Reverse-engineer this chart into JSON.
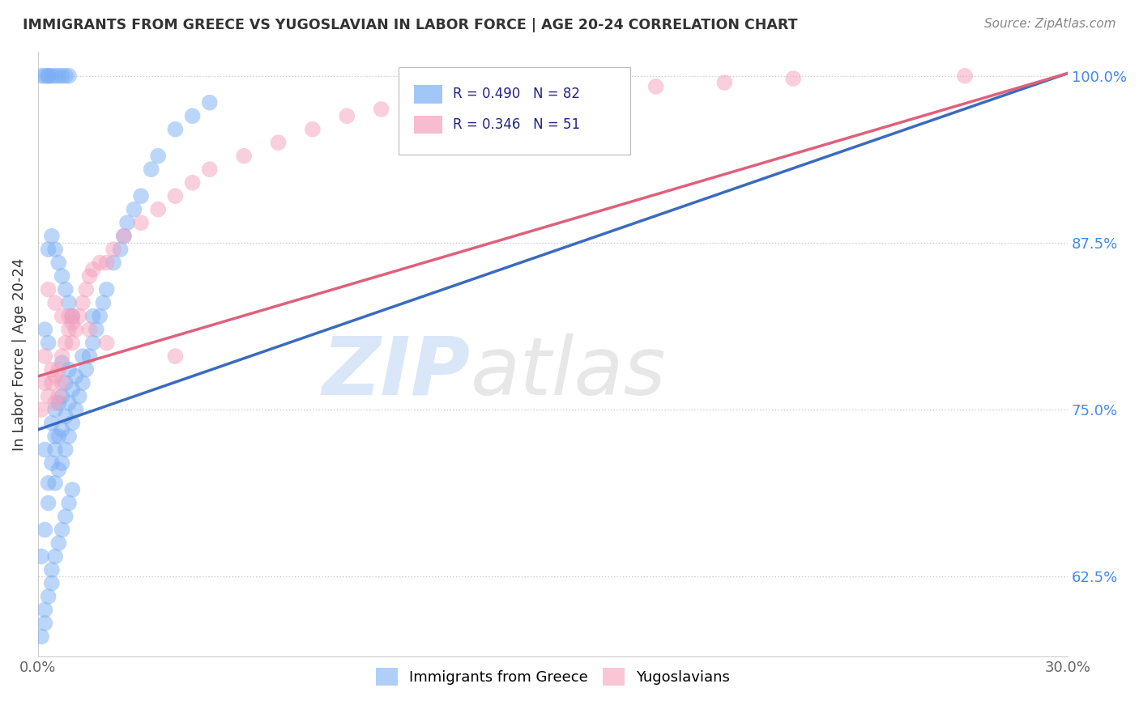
{
  "title": "IMMIGRANTS FROM GREECE VS YUGOSLAVIAN IN LABOR FORCE | AGE 20-24 CORRELATION CHART",
  "source": "Source: ZipAtlas.com",
  "ylabel": "In Labor Force | Age 20-24",
  "legend_labels": [
    "Immigrants from Greece",
    "Yugoslavians"
  ],
  "greece_color": "#7baff5",
  "yugoslavia_color": "#f5a0bc",
  "trend_greece_color": "#3a6bbf",
  "trend_yugoslavia_color": "#e0607a",
  "R_greece": 0.49,
  "N_greece": 82,
  "R_yugoslavia": 0.346,
  "N_yugoslavia": 51,
  "xmin": 0.0,
  "xmax": 0.3,
  "ymin": 0.565,
  "ymax": 1.018,
  "yticks": [
    0.625,
    0.75,
    0.875,
    1.0
  ],
  "ytick_labels": [
    "62.5%",
    "75.0%",
    "87.5%",
    "100.0%"
  ],
  "xticks": [
    0.0,
    0.3
  ],
  "xtick_labels": [
    "0.0%",
    "30.0%"
  ],
  "background_color": "#ffffff",
  "grid_color": "#cccccc",
  "greece_trend_x0": 0.0,
  "greece_trend_y0": 0.735,
  "greece_trend_x1": 0.3,
  "greece_trend_y1": 1.002,
  "yugo_trend_x0": 0.0,
  "yugo_trend_y0": 0.775,
  "yugo_trend_x1": 0.3,
  "yugo_trend_y1": 1.002,
  "greece_x": [
    0.001,
    0.002,
    0.002,
    0.003,
    0.003,
    0.004,
    0.004,
    0.005,
    0.005,
    0.005,
    0.005,
    0.006,
    0.006,
    0.006,
    0.007,
    0.007,
    0.007,
    0.007,
    0.008,
    0.008,
    0.008,
    0.009,
    0.009,
    0.009,
    0.01,
    0.01,
    0.011,
    0.011,
    0.012,
    0.013,
    0.013,
    0.014,
    0.015,
    0.016,
    0.016,
    0.017,
    0.018,
    0.019,
    0.02,
    0.022,
    0.024,
    0.025,
    0.026,
    0.028,
    0.03,
    0.033,
    0.035,
    0.04,
    0.045,
    0.05,
    0.001,
    0.002,
    0.003,
    0.003,
    0.004,
    0.005,
    0.006,
    0.007,
    0.008,
    0.009,
    0.001,
    0.002,
    0.002,
    0.003,
    0.004,
    0.004,
    0.005,
    0.006,
    0.007,
    0.008,
    0.009,
    0.01,
    0.003,
    0.004,
    0.005,
    0.006,
    0.007,
    0.008,
    0.009,
    0.01,
    0.002,
    0.003
  ],
  "greece_y": [
    0.64,
    0.66,
    0.72,
    0.695,
    0.68,
    0.71,
    0.74,
    0.695,
    0.72,
    0.75,
    0.73,
    0.705,
    0.73,
    0.755,
    0.71,
    0.735,
    0.76,
    0.785,
    0.72,
    0.745,
    0.77,
    0.73,
    0.755,
    0.78,
    0.74,
    0.765,
    0.75,
    0.775,
    0.76,
    0.77,
    0.79,
    0.78,
    0.79,
    0.8,
    0.82,
    0.81,
    0.82,
    0.83,
    0.84,
    0.86,
    0.87,
    0.88,
    0.89,
    0.9,
    0.91,
    0.93,
    0.94,
    0.96,
    0.97,
    0.98,
    1.0,
    1.0,
    1.0,
    1.0,
    1.0,
    1.0,
    1.0,
    1.0,
    1.0,
    1.0,
    0.58,
    0.59,
    0.6,
    0.61,
    0.62,
    0.63,
    0.64,
    0.65,
    0.66,
    0.67,
    0.68,
    0.69,
    0.87,
    0.88,
    0.87,
    0.86,
    0.85,
    0.84,
    0.83,
    0.82,
    0.81,
    0.8
  ],
  "yugoslavia_x": [
    0.001,
    0.002,
    0.002,
    0.003,
    0.004,
    0.004,
    0.005,
    0.005,
    0.006,
    0.006,
    0.007,
    0.007,
    0.008,
    0.009,
    0.009,
    0.01,
    0.01,
    0.011,
    0.012,
    0.013,
    0.014,
    0.015,
    0.016,
    0.018,
    0.02,
    0.022,
    0.025,
    0.03,
    0.035,
    0.04,
    0.045,
    0.05,
    0.06,
    0.07,
    0.08,
    0.09,
    0.1,
    0.12,
    0.14,
    0.16,
    0.18,
    0.2,
    0.22,
    0.003,
    0.005,
    0.007,
    0.01,
    0.015,
    0.02,
    0.04,
    0.27
  ],
  "yugoslavia_y": [
    0.75,
    0.77,
    0.79,
    0.76,
    0.77,
    0.78,
    0.755,
    0.775,
    0.76,
    0.78,
    0.77,
    0.79,
    0.8,
    0.81,
    0.82,
    0.8,
    0.82,
    0.81,
    0.82,
    0.83,
    0.84,
    0.85,
    0.855,
    0.86,
    0.86,
    0.87,
    0.88,
    0.89,
    0.9,
    0.91,
    0.92,
    0.93,
    0.94,
    0.95,
    0.96,
    0.97,
    0.975,
    0.98,
    0.985,
    0.99,
    0.992,
    0.995,
    0.998,
    0.84,
    0.83,
    0.82,
    0.815,
    0.81,
    0.8,
    0.79,
    1.0
  ]
}
